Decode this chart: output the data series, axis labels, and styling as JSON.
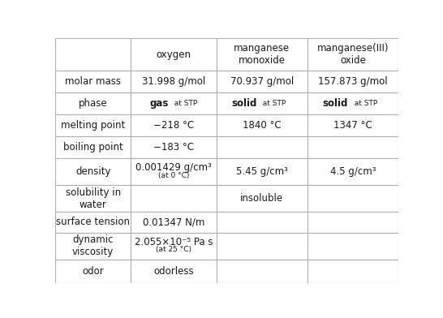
{
  "col_headers": [
    "",
    "oxygen",
    "manganese\nmonoxide",
    "manganese(III)\noxide"
  ],
  "rows": [
    {
      "label": "molar mass",
      "v1": "31.998 g/mol",
      "v1s": "",
      "v2": "70.937 g/mol",
      "v2s": "",
      "v3": "157.873 g/mol",
      "v3s": ""
    },
    {
      "label": "phase",
      "v1": "gas",
      "v1s": "at STP",
      "v2": "solid",
      "v2s": "at STP",
      "v3": "solid",
      "v3s": "at STP"
    },
    {
      "label": "melting point",
      "v1": "−218 °C",
      "v1s": "",
      "v2": "1840 °C",
      "v2s": "",
      "v3": "1347 °C",
      "v3s": ""
    },
    {
      "label": "boiling point",
      "v1": "−183 °C",
      "v1s": "",
      "v2": "",
      "v2s": "",
      "v3": "",
      "v3s": ""
    },
    {
      "label": "density",
      "v1": "0.001429 g/cm³",
      "v1s": "(at 0 °C)",
      "v2": "5.45 g/cm³",
      "v2s": "",
      "v3": "4.5 g/cm³",
      "v3s": ""
    },
    {
      "label": "solubility in\nwater",
      "v1": "",
      "v1s": "",
      "v2": "insoluble",
      "v2s": "",
      "v3": "",
      "v3s": ""
    },
    {
      "label": "surface tension",
      "v1": "0.01347 N/m",
      "v1s": "",
      "v2": "",
      "v2s": "",
      "v3": "",
      "v3s": ""
    },
    {
      "label": "dynamic\nviscosity",
      "v1": "2.055×10⁻⁵ Pa s",
      "v1s": "(at 25 °C)",
      "v2": "",
      "v2s": "",
      "v3": "",
      "v3s": ""
    },
    {
      "label": "odor",
      "v1": "odorless",
      "v1s": "",
      "v2": "",
      "v2s": "",
      "v3": "",
      "v3s": ""
    }
  ],
  "grid_color": "#b0b0b0",
  "text_color": "#1a1a1a",
  "bg_color": "#ffffff",
  "main_fs": 8.5,
  "sub_fs": 6.5,
  "header_fs": 8.5
}
